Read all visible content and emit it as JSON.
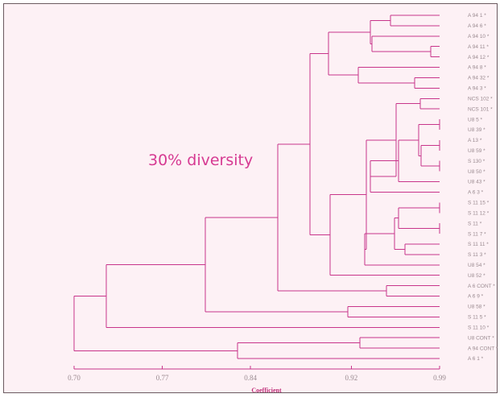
{
  "diagram": {
    "annotation": "30% diversity",
    "axis_title": "Coefficient",
    "ticks": [
      "0.70",
      "0.77",
      "0.84",
      "0.92",
      "0.99"
    ],
    "colors": {
      "line": "#c8358a",
      "text": "#d63a92",
      "label": "#9a8a90",
      "background": "#fdf1f5"
    }
  },
  "chart_data": {
    "type": "dendrogram",
    "xlabel": "Coefficient",
    "xlim": [
      0.7,
      0.99
    ],
    "leaves": [
      "A 94 1 *",
      "A 94 6 *",
      "A 94 10 *",
      "A 94 11 *",
      "A 94 12 *",
      "A 94 8 *",
      "A 94 32 *",
      "A 94 3 *",
      "NCS 102 *",
      "NCS 101 *",
      "U8 5 *",
      "U8 39 *",
      "A 13 *",
      "U8 59 *",
      "S 130 *",
      "U8 50 *",
      "U8 43 *",
      "A 6 3 *",
      "S 11 15 *",
      "S 11 12 *",
      "S 11 *",
      "S 11 7 *",
      "S 11 11 *",
      "S 11 3 *",
      "U8 54 *",
      "U8 52 *",
      "A 6 CONT *",
      "A 6 9 *",
      "U8 58 *",
      "S 11 5 *",
      "S 11 10 *",
      "U8 CONT *",
      "A 94 CONT *",
      "A 6 1 *"
    ]
  }
}
